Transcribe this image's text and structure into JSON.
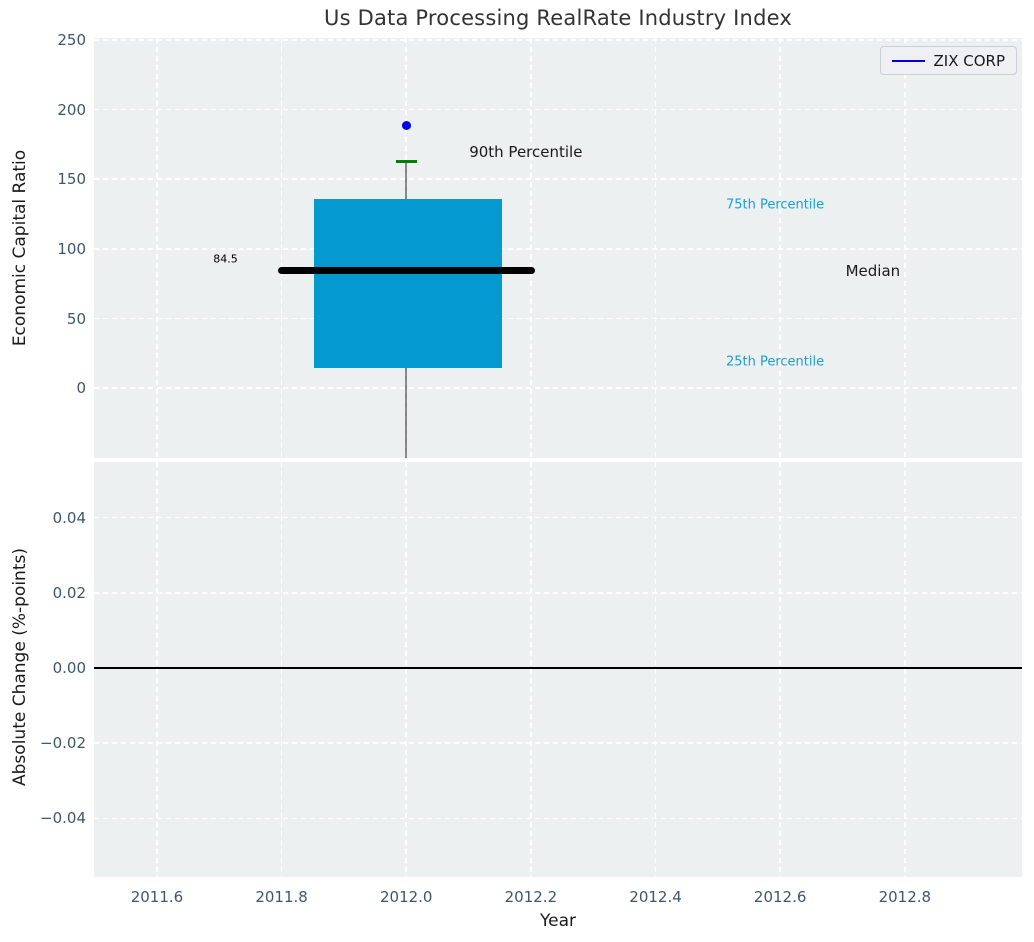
{
  "legend": {
    "label": "ZIX CORP",
    "line_color": "#0000e0"
  },
  "chart_data": [
    {
      "type": "box",
      "title": "Us Data Processing RealRate Industry Index",
      "ylabel": "Economic Capital Ratio",
      "xlim": [
        2011.499,
        2012.988
      ],
      "ylim": [
        -50.1,
        251.4
      ],
      "yticks": [
        0,
        50,
        100,
        150,
        200,
        250
      ],
      "grid": true,
      "legend_position": "upper right",
      "x": 2012.0,
      "box": {
        "p25": 14.5,
        "median": 84.5,
        "p75": 135.5,
        "p90": 162.5,
        "box_left": 2011.852,
        "box_right": 2012.153,
        "median_left": 2011.794,
        "median_right": 2012.206,
        "cap_halfwidth": 0.017,
        "lower_whisker_clipped_below": -50.1
      },
      "company_point": {
        "name": "ZIX CORP",
        "x": 2012.0,
        "y": 188.5
      },
      "annotations": [
        {
          "text": "84.5",
          "x": 2011.71,
          "y": 93.0,
          "size": 11,
          "color": "#000000",
          "anchor": "middle"
        },
        {
          "text": "90th Percentile",
          "x": 2012.101,
          "y": 169.5,
          "size": 15,
          "color": "#1a1a1a",
          "anchor": "start"
        },
        {
          "text": "75th Percentile",
          "x": 2012.513,
          "y": 131.5,
          "size": 13,
          "color": "#1b9ed6",
          "anchor": "start"
        },
        {
          "text": "Median",
          "x": 2012.705,
          "y": 84.0,
          "size": 15,
          "color": "#1a1a1a",
          "anchor": "start"
        },
        {
          "text": "25th Percentile",
          "x": 2012.513,
          "y": 19.0,
          "size": 13,
          "color": "#1b9ed6",
          "anchor": "start"
        }
      ],
      "colors": {
        "box_fill": "#0499cf",
        "median_line": "#000000",
        "p90_cap": "#008000",
        "whisker": "#4a4a4a",
        "company_dot": "#0000f0"
      }
    },
    {
      "type": "line",
      "ylabel": "Absolute Change (%-points)",
      "xlabel": "Year",
      "xticks": [
        2011.6,
        2011.8,
        2012.0,
        2012.2,
        2012.4,
        2012.6,
        2012.8
      ],
      "xtick_labels": [
        "2011.6",
        "2011.8",
        "2012.0",
        "2012.2",
        "2012.4",
        "2012.6",
        "2012.8"
      ],
      "yticks": [
        0.04,
        0.02,
        0.0,
        -0.02,
        -0.04
      ],
      "ytick_labels": [
        "0.04",
        "0.02",
        "0.00",
        "−0.02",
        "−0.04"
      ],
      "ylim": [
        -0.0556,
        0.0548
      ],
      "zero_line": 0.0,
      "grid": true,
      "series": []
    }
  ]
}
